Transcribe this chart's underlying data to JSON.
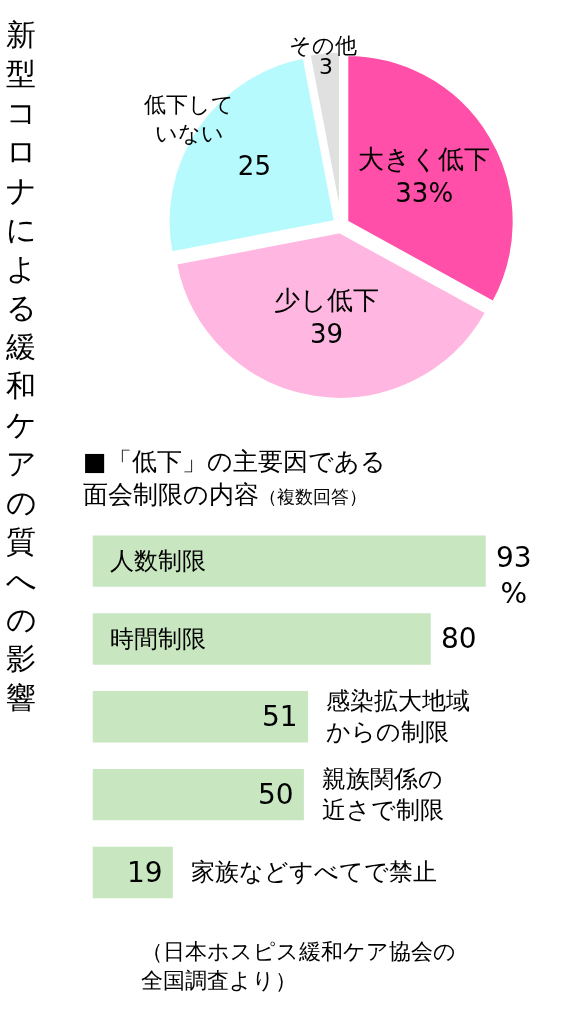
{
  "chart_data": [
    {
      "type": "pie",
      "title": "新型コロナによる緩和ケアの質への影響",
      "categories": [
        "大きく低下",
        "少し低下",
        "低下していない",
        "その他"
      ],
      "values": [
        33,
        39,
        25,
        3
      ],
      "value_labels": [
        "33%",
        "39",
        "25",
        "3"
      ],
      "colors": [
        "#ff4fa8",
        "#ffb6e0",
        "#b6fafd",
        "#e0e0e0"
      ]
    },
    {
      "type": "bar",
      "orientation": "horizontal",
      "title": "■「低下」の主要因である面会制限の内容",
      "subtitle": "（複数回答）",
      "categories": [
        "人数制限",
        "時間制限",
        "感染拡大地域からの制限",
        "親族関係の近さで制限",
        "家族などすべてで禁止"
      ],
      "values": [
        93,
        80,
        51,
        50,
        19
      ],
      "value_labels": [
        "93\n%",
        "80",
        "51",
        "50",
        "19"
      ],
      "color": "#c8e6c0",
      "annotations": [
        "（日本ホスピス緩和ケア協会の全国調査より）"
      ]
    }
  ]
}
